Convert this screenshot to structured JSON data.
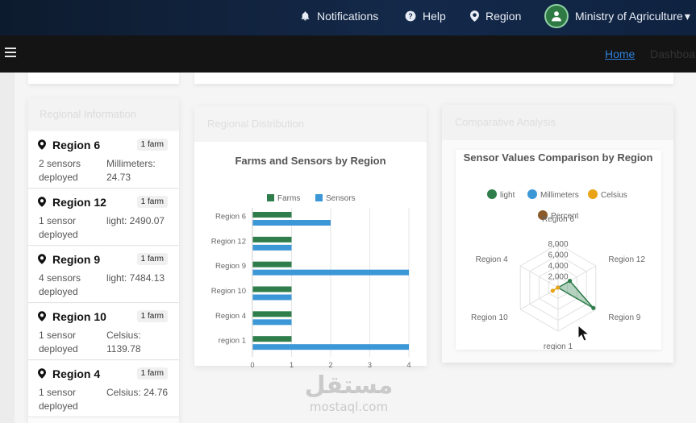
{
  "nav": {
    "notifications": "Notifications",
    "help": "Help",
    "region": "Region",
    "user": "Ministry of Agriculture",
    "user_caret": "▾"
  },
  "breadcrumb": {
    "home": "Home"
  },
  "regions_card": {
    "items": [
      {
        "name": "Region 6",
        "badge": "1 farm",
        "sensors": "2 sensors deployed",
        "value": "Millimeters: 24.73"
      },
      {
        "name": "Region 12",
        "badge": "1 farm",
        "sensors": "1 sensor deployed",
        "value": "light: 2490.07"
      },
      {
        "name": "Region 9",
        "badge": "1 farm",
        "sensors": "4 sensors deployed",
        "value": "light: 7484.13"
      },
      {
        "name": "Region 10",
        "badge": "1 farm",
        "sensors": "1 sensor deployed",
        "value": "Celsius: 1139.78"
      },
      {
        "name": "Region 4",
        "badge": "1 farm",
        "sensors": "1 sensor deployed",
        "value": "Celsius: 24.76"
      }
    ]
  },
  "chart_data": [
    {
      "type": "bar",
      "orientation": "horizontal",
      "title": "Farms and Sensors by Region",
      "categories": [
        "Region 6",
        "Region 12",
        "Region 9",
        "Region 10",
        "Region 4",
        "region 1"
      ],
      "series": [
        {
          "name": "Farms",
          "color": "#2e7d4a",
          "values": [
            1,
            1,
            1,
            1,
            1,
            1
          ]
        },
        {
          "name": "Sensors",
          "color": "#3c97d6",
          "values": [
            2,
            1,
            4,
            1,
            1,
            4
          ]
        }
      ],
      "xticks": [
        "0",
        "1",
        "2",
        "3",
        "4"
      ],
      "xlim": [
        0,
        4
      ],
      "legend": "top",
      "grid": true
    },
    {
      "type": "radar",
      "title": "Sensor Values Comparison by Region",
      "axes": [
        "Region 6",
        "Region 12",
        "Region 9",
        "region 1",
        "Region 10",
        "Region 4"
      ],
      "rticks": [
        "2,000",
        "4,000",
        "6,000",
        "8,000"
      ],
      "rlim": [
        0,
        8000
      ],
      "series": [
        {
          "name": "light",
          "color": "#2e7d4a",
          "values": [
            0,
            2490.07,
            7484.13,
            0,
            0,
            0
          ]
        },
        {
          "name": "Millimeters",
          "color": "#3c97d6",
          "values": [
            24.73,
            0,
            0,
            0,
            0,
            0
          ]
        },
        {
          "name": "Celsius",
          "color": "#e8a317",
          "values": [
            0,
            0,
            0,
            0,
            1139.78,
            24.76
          ]
        },
        {
          "name": "Percent",
          "color": "#8b5a2b",
          "values": [
            0,
            0,
            0,
            0,
            0,
            0
          ]
        }
      ],
      "legend": "top"
    }
  ],
  "watermark": {
    "arabic": "مستقل",
    "latin": "mostaql.com"
  }
}
